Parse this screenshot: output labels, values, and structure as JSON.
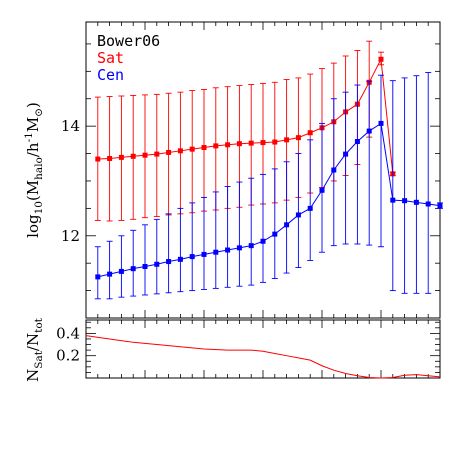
{
  "chart_data": [
    {
      "type": "line",
      "panel": "top",
      "ylabel": {
        "base": "log",
        "base_sub": "10",
        "open": "(M",
        "halo_sub": "halo",
        "mid": "/h",
        "exp": "-1",
        "m2": "M",
        "sun_sub": "⊙",
        "close": ")"
      },
      "xlabel": "",
      "xlim": [
        0,
        30
      ],
      "ylim": [
        10.5,
        15.9
      ],
      "yticks": [
        12,
        14
      ],
      "ytick_labels": [
        "12",
        "14"
      ],
      "legend": {
        "placement": "top-left",
        "title": "Bower06"
      },
      "colors": {
        "Sat": "#ff0000",
        "Cen": "#0000ff",
        "title": "#000000"
      },
      "series": [
        {
          "name": "Sat",
          "x": [
            1,
            2,
            3,
            4,
            5,
            6,
            7,
            8,
            9,
            10,
            11,
            12,
            13,
            14,
            15,
            16,
            17,
            18,
            19,
            20,
            21,
            22,
            23,
            24,
            25,
            26
          ],
          "values": [
            13.4,
            13.41,
            13.43,
            13.45,
            13.47,
            13.49,
            13.52,
            13.55,
            13.58,
            13.61,
            13.64,
            13.66,
            13.68,
            13.69,
            13.7,
            13.71,
            13.75,
            13.79,
            13.88,
            13.97,
            14.08,
            14.26,
            14.4,
            14.8,
            15.22,
            13.13
          ],
          "err_low": [
            12.28,
            12.27,
            12.28,
            12.3,
            12.33,
            12.35,
            12.38,
            12.4,
            12.42,
            12.45,
            12.47,
            12.5,
            12.52,
            12.56,
            12.58,
            12.6,
            12.65,
            12.7,
            12.78,
            12.88,
            13.0,
            13.1,
            13.3,
            13.8,
            15.12,
            13.1
          ],
          "err_high": [
            14.53,
            14.54,
            14.55,
            14.56,
            14.57,
            14.58,
            14.6,
            14.62,
            14.65,
            14.67,
            14.7,
            14.72,
            14.74,
            14.76,
            14.78,
            14.8,
            14.85,
            14.88,
            14.95,
            15.05,
            15.15,
            15.28,
            15.38,
            15.55,
            15.35,
            13.16
          ]
        },
        {
          "name": "Cen",
          "x": [
            1,
            2,
            3,
            4,
            5,
            6,
            7,
            8,
            9,
            10,
            11,
            12,
            13,
            14,
            15,
            16,
            17,
            18,
            19,
            20,
            21,
            22,
            23,
            24,
            25,
            26,
            27,
            28,
            29,
            30
          ],
          "values": [
            11.25,
            11.3,
            11.35,
            11.4,
            11.44,
            11.48,
            11.53,
            11.57,
            11.62,
            11.66,
            11.7,
            11.74,
            11.78,
            11.82,
            11.9,
            12.03,
            12.2,
            12.38,
            12.5,
            12.83,
            13.2,
            13.49,
            13.72,
            13.91,
            14.05,
            12.65,
            12.64,
            12.61,
            12.58,
            12.55
          ],
          "err_low": [
            10.85,
            10.85,
            10.88,
            10.9,
            10.92,
            10.94,
            10.96,
            10.98,
            11.0,
            11.02,
            11.04,
            11.06,
            11.08,
            11.1,
            11.15,
            11.22,
            11.32,
            11.42,
            11.55,
            11.7,
            11.82,
            11.85,
            11.85,
            11.83,
            11.8,
            11.0,
            10.95,
            10.95,
            10.95,
            12.5
          ],
          "err_high": [
            11.8,
            11.9,
            12.0,
            12.1,
            12.2,
            12.3,
            12.4,
            12.5,
            12.6,
            12.7,
            12.8,
            12.9,
            12.98,
            13.05,
            13.12,
            13.22,
            13.35,
            13.5,
            13.75,
            14.05,
            14.5,
            14.62,
            14.75,
            14.82,
            14.93,
            14.83,
            14.88,
            14.92,
            14.98,
            12.6
          ]
        }
      ]
    },
    {
      "type": "line",
      "panel": "bottom",
      "ylabel": {
        "n": "N",
        "sat_sub": "Sat",
        "slash": "/N",
        "tot_sub": "tot"
      },
      "xlabel": "",
      "xlim": [
        0,
        30
      ],
      "ylim": [
        0,
        0.52
      ],
      "yticks": [
        0.2,
        0.4
      ],
      "ytick_labels": [
        "0.2",
        "0.4"
      ],
      "colors": {
        "line": "#ff0000"
      },
      "series": [
        {
          "x": [
            0,
            2,
            4,
            6,
            8,
            10,
            12,
            14,
            15,
            16,
            17,
            18,
            19,
            20,
            21,
            22,
            23,
            24,
            25,
            26,
            27,
            28,
            29,
            30
          ],
          "values": [
            0.38,
            0.35,
            0.32,
            0.3,
            0.28,
            0.26,
            0.25,
            0.25,
            0.24,
            0.22,
            0.2,
            0.18,
            0.16,
            0.11,
            0.07,
            0.04,
            0.02,
            0.005,
            0.0,
            0.005,
            0.025,
            0.03,
            0.02,
            0.01
          ]
        }
      ]
    }
  ]
}
